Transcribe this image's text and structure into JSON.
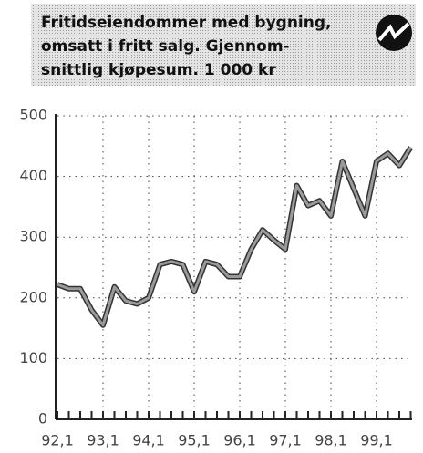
{
  "chart_data": {
    "type": "line",
    "title_lines": [
      "Fritidseiendommer med bygning,",
      "omsatt i fritt salg. Gjennom-",
      "snittlig kjøpesum. 1 000 kr"
    ],
    "categories": [
      "92,1",
      null,
      null,
      null,
      "93,1",
      null,
      null,
      null,
      "94,1",
      null,
      null,
      null,
      "95,1",
      null,
      null,
      null,
      "96,1",
      null,
      null,
      null,
      "97,1",
      null,
      null,
      null,
      "98,1",
      null,
      null,
      null,
      "99,1",
      null,
      null,
      null
    ],
    "values": [
      222,
      215,
      215,
      180,
      155,
      218,
      195,
      190,
      200,
      255,
      260,
      255,
      210,
      260,
      255,
      235,
      235,
      280,
      312,
      295,
      280,
      385,
      352,
      360,
      335,
      425,
      380,
      335,
      425,
      438,
      418,
      448
    ],
    "color": "#9a9a9a",
    "ylim": [
      0,
      500
    ],
    "yticks": [
      0,
      100,
      200,
      300,
      400,
      500
    ],
    "grid": true
  }
}
